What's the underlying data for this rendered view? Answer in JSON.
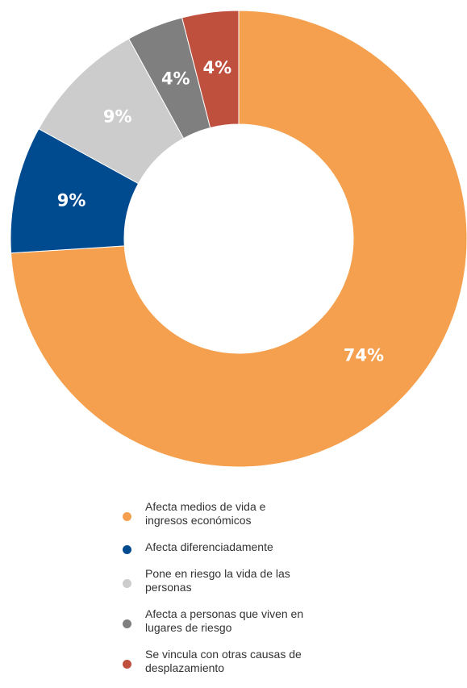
{
  "chart_data": {
    "type": "donut",
    "categories": [
      "Afecta medios de vida e ingresos económicos",
      "Afecta diferenciadamente",
      "Pone en riesgo la vida de las personas",
      "Afecta a personas que viven en lugares de riesgo",
      "Se vincula con otras causas de desplazamiento"
    ],
    "values": [
      74,
      9,
      9,
      4,
      4
    ],
    "value_labels": [
      "74%",
      "9%",
      "9%",
      "4%",
      "4%"
    ],
    "colors": [
      "#F5A04F",
      "#004A8F",
      "#CCCCCC",
      "#7F7F7F",
      "#C0503E"
    ]
  }
}
